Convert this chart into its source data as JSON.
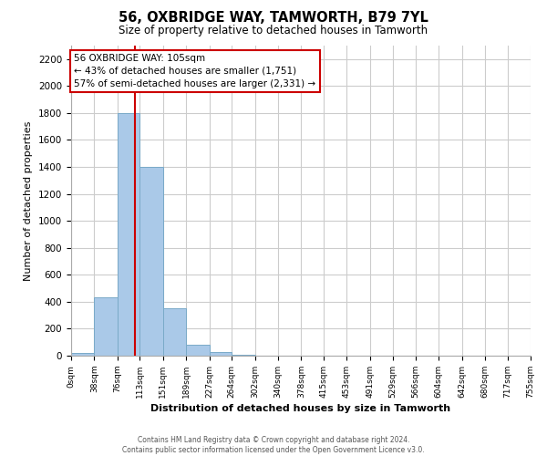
{
  "title": "56, OXBRIDGE WAY, TAMWORTH, B79 7YL",
  "subtitle": "Size of property relative to detached houses in Tamworth",
  "xlabel": "Distribution of detached houses by size in Tamworth",
  "ylabel": "Number of detached properties",
  "bin_edges": [
    0,
    38,
    76,
    113,
    151,
    189,
    227,
    264,
    302,
    340,
    378,
    415,
    453,
    491,
    529,
    566,
    604,
    642,
    680,
    717,
    755
  ],
  "bar_heights": [
    20,
    430,
    1800,
    1400,
    350,
    80,
    25,
    5,
    0,
    0,
    0,
    0,
    0,
    0,
    0,
    0,
    0,
    0,
    0,
    0
  ],
  "bar_color": "#aac9e8",
  "bar_edge_color": "#7aaac8",
  "property_line_x": 105,
  "property_line_color": "#cc0000",
  "annotation_title": "56 OXBRIDGE WAY: 105sqm",
  "annotation_line1": "← 43% of detached houses are smaller (1,751)",
  "annotation_line2": "57% of semi-detached houses are larger (2,331) →",
  "annotation_box_color": "#ffffff",
  "annotation_box_edge": "#cc0000",
  "ylim": [
    0,
    2300
  ],
  "yticks": [
    0,
    200,
    400,
    600,
    800,
    1000,
    1200,
    1400,
    1600,
    1800,
    2000,
    2200
  ],
  "tick_labels": [
    "0sqm",
    "38sqm",
    "76sqm",
    "113sqm",
    "151sqm",
    "189sqm",
    "227sqm",
    "264sqm",
    "302sqm",
    "340sqm",
    "378sqm",
    "415sqm",
    "453sqm",
    "491sqm",
    "529sqm",
    "566sqm",
    "604sqm",
    "642sqm",
    "680sqm",
    "717sqm",
    "755sqm"
  ],
  "footer_line1": "Contains HM Land Registry data © Crown copyright and database right 2024.",
  "footer_line2": "Contains public sector information licensed under the Open Government Licence v3.0.",
  "grid_color": "#cccccc",
  "background_color": "#ffffff"
}
